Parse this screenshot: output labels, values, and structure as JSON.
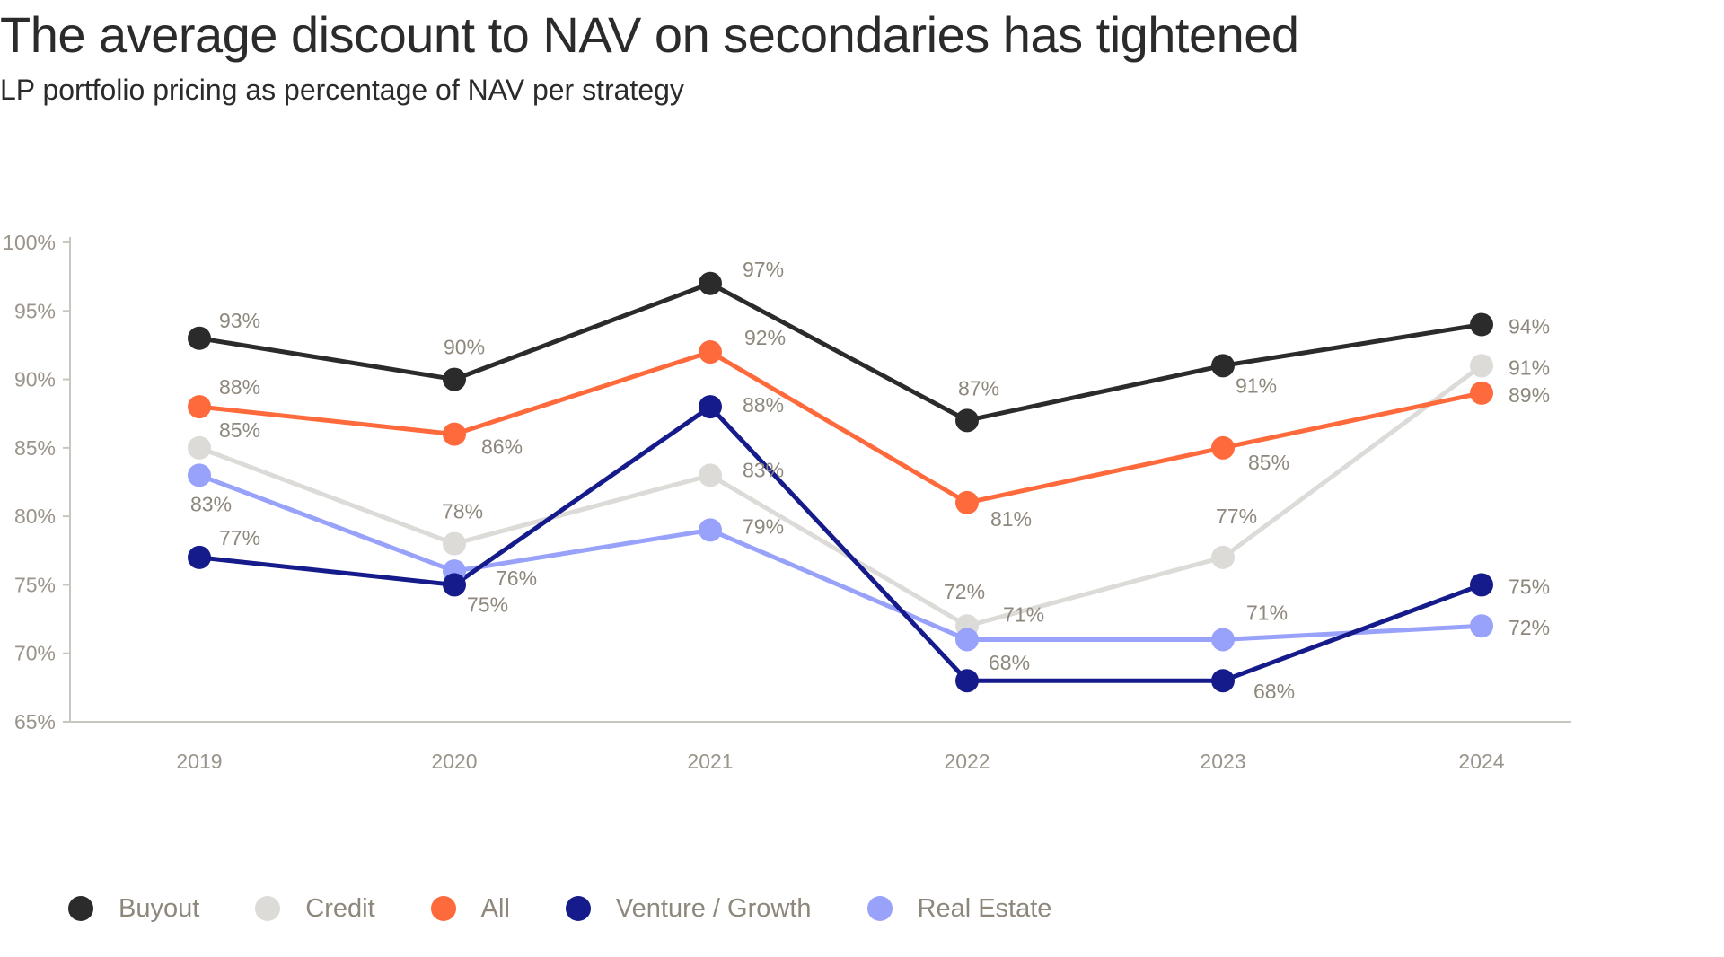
{
  "header": {
    "title": "The average discount to NAV on secondaries has tightened",
    "subtitle": "LP portfolio pricing as percentage of NAV per strategy"
  },
  "chart_data": {
    "type": "line",
    "title": "The average discount to NAV on secondaries has tightened",
    "subtitle": "LP portfolio pricing as percentage of NAV per strategy",
    "xlabel": "",
    "ylabel": "",
    "categories": [
      "2019",
      "2020",
      "2021",
      "2022",
      "2023",
      "2024"
    ],
    "ylim": [
      65,
      100
    ],
    "y_ticks": [
      100,
      95,
      90,
      85,
      80,
      75,
      70,
      65
    ],
    "y_tick_labels": [
      "100%",
      "95%",
      "90%",
      "85%",
      "80%",
      "75%",
      "70%",
      "65%"
    ],
    "grid": false,
    "legend_position": "bottom-left",
    "series": [
      {
        "name": "Buyout",
        "color": "#2b2b2b",
        "values": [
          93,
          90,
          97,
          87,
          91,
          94
        ],
        "labels": [
          "93%",
          "90%",
          "97%",
          "87%",
          "91%",
          "94%"
        ]
      },
      {
        "name": "Credit",
        "color": "#dddbd8",
        "values": [
          85,
          78,
          83,
          72,
          77,
          91
        ],
        "labels": [
          "85%",
          "78%",
          "83%",
          "72%",
          "77%",
          "91%"
        ]
      },
      {
        "name": "All",
        "color": "#ff6a3d",
        "values": [
          88,
          86,
          92,
          81,
          85,
          89
        ],
        "labels": [
          "88%",
          "86%",
          "92%",
          "81%",
          "85%",
          "89%"
        ]
      },
      {
        "name": "Venture / Growth",
        "color": "#161b8c",
        "values": [
          77,
          75,
          88,
          68,
          68,
          75
        ],
        "labels": [
          "77%",
          "75%",
          "88%",
          "68%",
          "68%",
          "75%"
        ]
      },
      {
        "name": "Real Estate",
        "color": "#98a2fa",
        "values": [
          83,
          76,
          79,
          71,
          71,
          72
        ],
        "labels": [
          "83%",
          "76%",
          "79%",
          "71%",
          "71%",
          "72%"
        ]
      }
    ]
  }
}
